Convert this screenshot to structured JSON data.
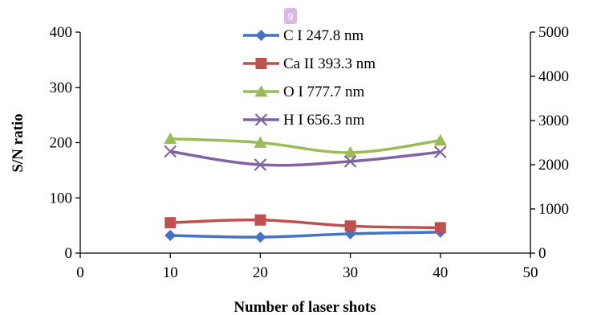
{
  "chart_data": {
    "type": "line",
    "xlabel": "Number of laser shots",
    "ylabel": "S/N ratio",
    "x": [
      10,
      20,
      30,
      40
    ],
    "xlim": [
      0,
      50
    ],
    "xticks": [
      0,
      10,
      20,
      30,
      40,
      50
    ],
    "ylim": [
      0,
      400
    ],
    "yticks": [
      0,
      100,
      200,
      300,
      400
    ],
    "y2lim": [
      0,
      5000
    ],
    "y2ticks": [
      0,
      1000,
      2000,
      3000,
      4000,
      5000
    ],
    "grid": false,
    "legend_position": "top-center",
    "series": [
      {
        "name": "C I 247.8 nm",
        "values": [
          32,
          29,
          35,
          38
        ],
        "color": "#4472C4",
        "marker": "diamond"
      },
      {
        "name": "Ca II 393.3 nm",
        "values": [
          55,
          60,
          49,
          46
        ],
        "color": "#C0504D",
        "marker": "square"
      },
      {
        "name": "O I 777.7 nm",
        "values": [
          207,
          200,
          182,
          204
        ],
        "color": "#9BBB59",
        "marker": "triangle"
      },
      {
        "name": "H I 656.3 nm",
        "values": [
          184,
          160,
          166,
          183
        ],
        "color": "#8064A2",
        "marker": "x"
      }
    ],
    "badge": "9"
  }
}
